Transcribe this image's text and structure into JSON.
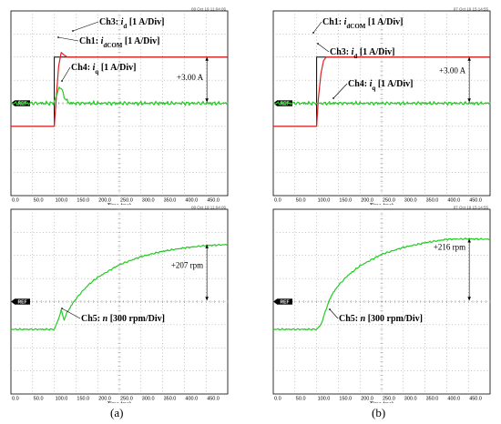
{
  "labels": {
    "a": "(a)",
    "b": "(b)"
  },
  "chart_data": [
    {
      "id": "a-top",
      "type": "line",
      "xlabel": "Time (ms)",
      "x_ticks": [
        "0.0",
        "50.0",
        "100.0",
        "150.0",
        "200.0",
        "250.0",
        "300.0",
        "350.0",
        "400.0",
        "450.0"
      ],
      "xlim": [
        0,
        500
      ],
      "timestamp": "08 Oct 19 11:04:06",
      "ref_label": "REF",
      "annotations": {
        "ch3": "Ch3: ",
        "ch3_var": "i",
        "ch3_sub": "d",
        "ch3_unit": " [1 A/Div]",
        "ch1": "Ch1: ",
        "ch1_var": "i",
        "ch1_sub": "dCOM",
        "ch1_unit": " [1 A/Div]",
        "ch4": "Ch4: ",
        "ch4_var": "i",
        "ch4_sub": "q",
        "ch4_unit": " [1 A/Div]",
        "delta": "+3.00 A"
      },
      "series": [
        {
          "name": "Ch1",
          "color": "#000000",
          "x": [
            0,
            100,
            100,
            500
          ],
          "y": [
            -1.0,
            -1.0,
            2.0,
            2.0
          ]
        },
        {
          "name": "Ch3",
          "color": "#e02020",
          "x": [
            0,
            100,
            106,
            110,
            116,
            122,
            130,
            150,
            500
          ],
          "y": [
            -1.0,
            -1.0,
            0.6,
            1.6,
            2.2,
            2.1,
            2.0,
            2.0,
            2.0
          ]
        },
        {
          "name": "Ch4",
          "color": "#22cc22",
          "x": [
            0,
            98,
            106,
            112,
            118,
            126,
            136,
            150,
            500
          ],
          "y": [
            0.0,
            0.0,
            0.35,
            0.75,
            0.55,
            0.15,
            0.0,
            0.0,
            0.0
          ]
        }
      ]
    },
    {
      "id": "a-bottom",
      "type": "line",
      "xlabel": "Time (ms)",
      "x_ticks": [
        "0.0",
        "50.0",
        "100.0",
        "150.0",
        "200.0",
        "250.0",
        "300.0",
        "350.0",
        "400.0",
        "450.0"
      ],
      "xlim": [
        0,
        500
      ],
      "timestamp": "08 Oct 19 11:04:06",
      "ref_label": "REF",
      "annotations": {
        "ch5": "Ch5: ",
        "ch5_var": "n",
        "ch5_unit": " [300 rpm/Div]",
        "delta": "+207 rpm"
      },
      "series": [
        {
          "name": "Ch5",
          "color": "#22cc22",
          "x": [
            0,
            100,
            110,
            116,
            122,
            130,
            145,
            160,
            180,
            200,
            250,
            300,
            350,
            400,
            450,
            500
          ],
          "y": [
            -1.2,
            -1.2,
            -0.75,
            -0.35,
            -0.8,
            -0.45,
            0.0,
            0.35,
            0.75,
            1.05,
            1.6,
            1.95,
            2.18,
            2.33,
            2.43,
            2.47
          ]
        }
      ]
    },
    {
      "id": "b-top",
      "type": "line",
      "xlabel": "Time (ms)",
      "x_ticks": [
        "0.0",
        "50.0",
        "100.0",
        "150.0",
        "200.0",
        "250.0",
        "300.0",
        "350.0",
        "400.0",
        "450.0"
      ],
      "xlim": [
        0,
        500
      ],
      "timestamp": "07 Oct 19 15:14:55",
      "ref_label": "REF",
      "annotations": {
        "ch1": "Ch1: ",
        "ch1_var": "i",
        "ch1_sub": "dCOM",
        "ch1_unit": " [1 A/Div]",
        "ch3": "Ch3: ",
        "ch3_var": "i",
        "ch3_sub": "d",
        "ch3_unit": " [1 A/Div]",
        "ch4": "Ch4: ",
        "ch4_var": "i",
        "ch4_sub": "q",
        "ch4_unit": " [1 A/Div]",
        "delta": "+3.00 A"
      },
      "series": [
        {
          "name": "Ch1",
          "color": "#000000",
          "x": [
            0,
            100,
            100,
            500
          ],
          "y": [
            -1.0,
            -1.0,
            2.0,
            2.0
          ]
        },
        {
          "name": "Ch3",
          "color": "#e02020",
          "x": [
            0,
            100,
            104,
            110,
            116,
            122,
            130,
            500
          ],
          "y": [
            -1.0,
            -1.0,
            0.2,
            1.3,
            1.85,
            2.0,
            2.0,
            2.0
          ]
        },
        {
          "name": "Ch4",
          "color": "#22cc22",
          "x": [
            0,
            500
          ],
          "y": [
            0.0,
            0.0
          ]
        }
      ]
    },
    {
      "id": "b-bottom",
      "type": "line",
      "xlabel": "Time (ms)",
      "x_ticks": [
        "0.0",
        "50.0",
        "100.0",
        "150.0",
        "200.0",
        "250.0",
        "300.0",
        "350.0",
        "400.0",
        "450.0"
      ],
      "xlim": [
        0,
        500
      ],
      "timestamp": "07 Oct 19 15:14:55",
      "ref_label": "REF",
      "annotations": {
        "ch5": "Ch5: ",
        "ch5_var": "n",
        "ch5_unit": " [300 rpm/Div]",
        "delta": "+216 rpm"
      },
      "series": [
        {
          "name": "Ch5",
          "color": "#22cc22",
          "x": [
            0,
            100,
            110,
            118,
            126,
            135,
            150,
            170,
            200,
            250,
            300,
            350,
            400,
            450,
            500
          ],
          "y": [
            -1.2,
            -1.2,
            -1.0,
            -0.55,
            -0.1,
            0.3,
            0.7,
            1.1,
            1.55,
            2.05,
            2.35,
            2.55,
            2.7,
            2.72,
            2.7
          ]
        }
      ]
    }
  ]
}
